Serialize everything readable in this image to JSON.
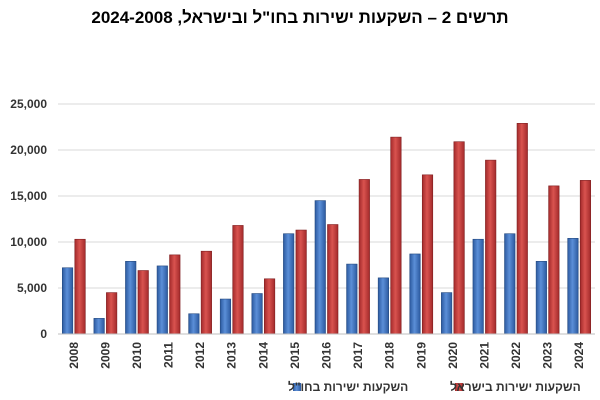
{
  "chart_data": {
    "type": "bar",
    "title": "תרשים 2 – השקעות ישירות בחו\"ל ובישראל, 2024-2008",
    "categories": [
      "2008",
      "2009",
      "2010",
      "2011",
      "2012",
      "2013",
      "2014",
      "2015",
      "2016",
      "2017",
      "2018",
      "2019",
      "2020",
      "2021",
      "2022",
      "2023",
      "2024"
    ],
    "series": [
      {
        "name": "השקעות ישירות בחו\"ל",
        "color": "#3f72c0",
        "values": [
          7200,
          1700,
          7900,
          7400,
          2200,
          3800,
          4400,
          10900,
          14500,
          7600,
          6100,
          8700,
          4500,
          10300,
          10900,
          7900,
          10400
        ]
      },
      {
        "name": "השקעות ישירות בישראל",
        "color": "#c4393a",
        "values": [
          10300,
          4500,
          6900,
          8600,
          9000,
          11800,
          6000,
          11300,
          11900,
          16800,
          21400,
          17300,
          20900,
          18900,
          22900,
          16100,
          16700
        ]
      }
    ],
    "yticks": [
      "0",
      "5,000",
      "10,000",
      "15,000",
      "20,000",
      "25,000"
    ],
    "ytick_values": [
      0,
      5000,
      10000,
      15000,
      20000,
      25000
    ],
    "ylim": [
      0,
      25000
    ],
    "grid": true,
    "legend_position": "bottom"
  }
}
